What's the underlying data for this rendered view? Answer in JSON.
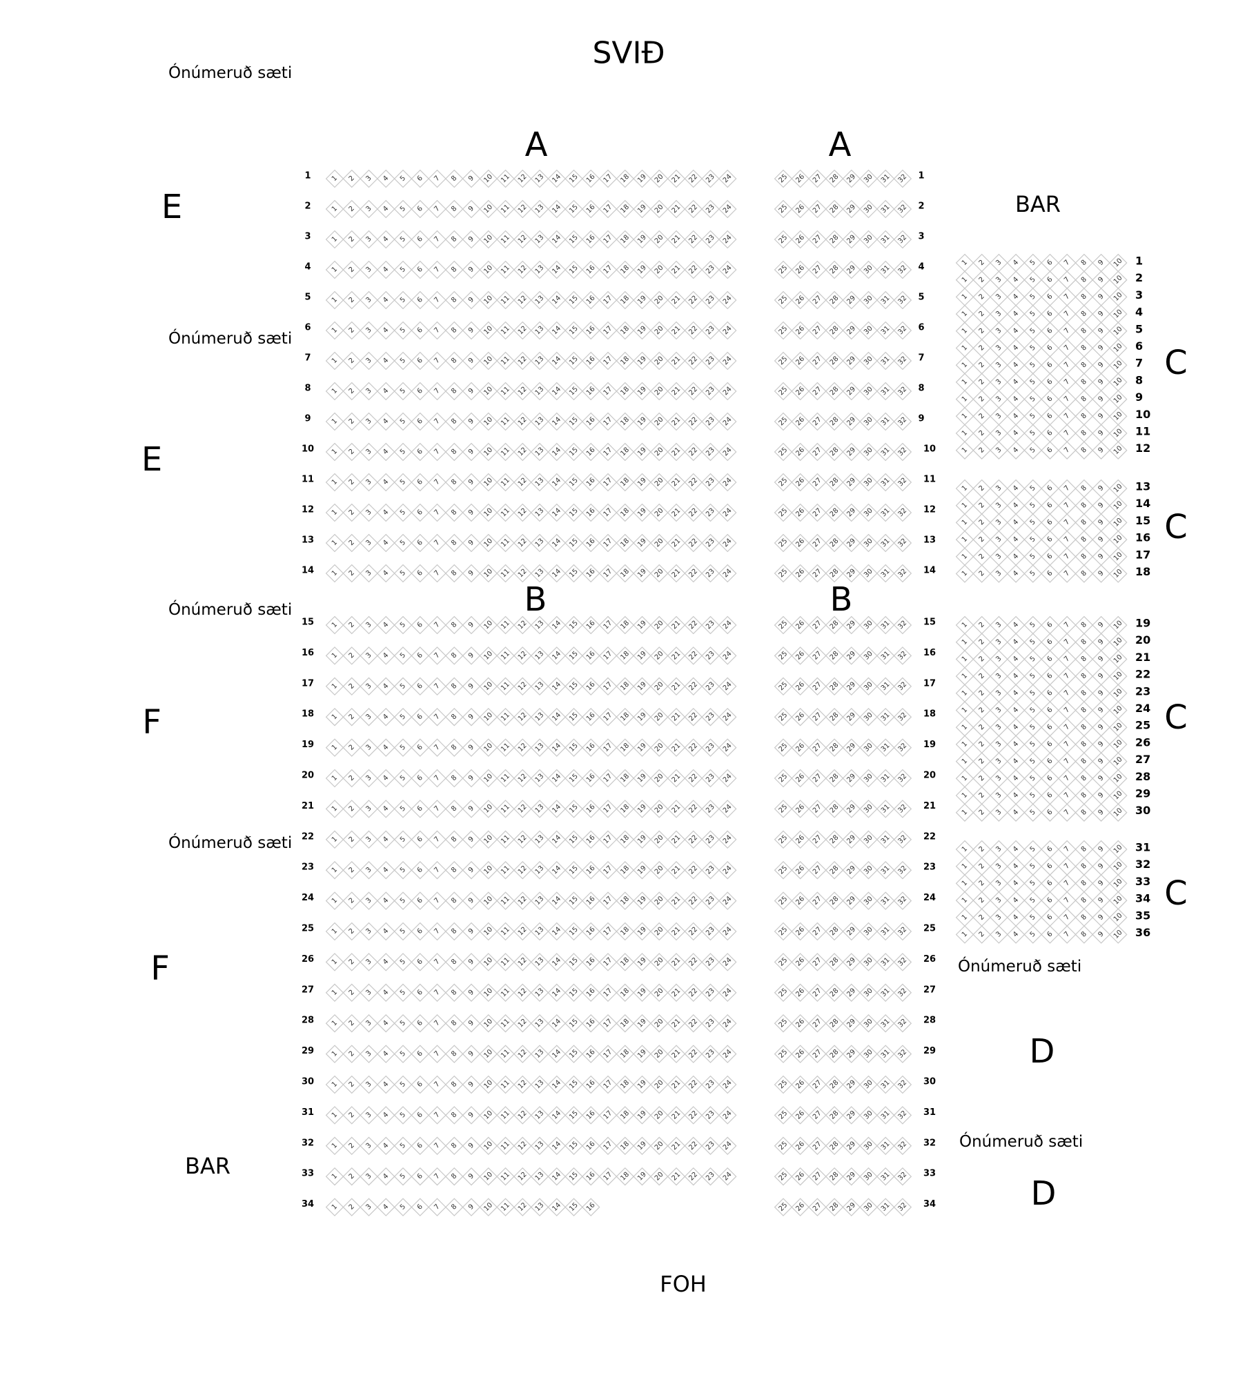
{
  "labels": {
    "stage": "SVIÐ",
    "foh": "FOH",
    "unnumbered": [
      "Ónúmeruð sæti",
      "Ónúmeruð sæti",
      "Ónúmeruð sæti",
      "Ónúmeruð sæti",
      "Ónúmeruð sæti",
      "Ónúmeruð sæti"
    ],
    "section_a": [
      "A",
      "A"
    ],
    "section_b": [
      "B",
      "B"
    ],
    "section_c": [
      "C",
      "C",
      "C",
      "C"
    ],
    "section_d": [
      "D",
      "D"
    ],
    "section_e": [
      "E",
      "E"
    ],
    "section_f": [
      "F",
      "F"
    ],
    "bar": [
      "BAR",
      "BAR"
    ]
  },
  "main_block": {
    "rows_from": 1,
    "rows_to": 34,
    "left_seats": [
      1,
      24
    ],
    "right_seats": [
      25,
      32
    ],
    "exceptions": [
      {
        "row": 34,
        "left_seats": [
          1,
          16
        ]
      }
    ]
  },
  "c_block": {
    "seats": [
      1,
      10
    ],
    "groups": [
      [
        1,
        12
      ],
      [
        13,
        18
      ],
      [
        19,
        30
      ],
      [
        31,
        36
      ]
    ]
  },
  "colors": {
    "seat_border": "#c8c8c8",
    "text": "#000000"
  }
}
